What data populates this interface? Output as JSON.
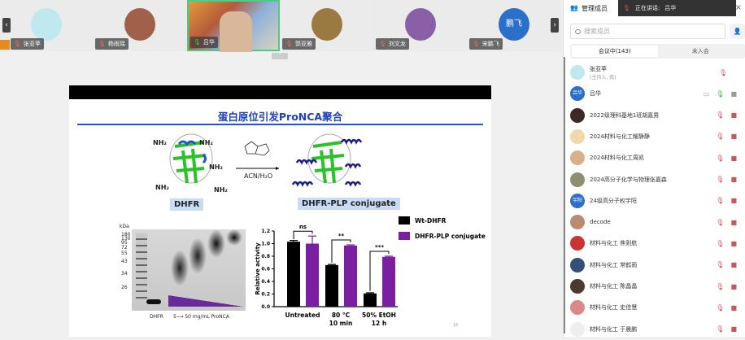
{
  "video_strip": {
    "tiles": [
      {
        "name": "张亚苹",
        "color": "#bfe8ef",
        "host": true
      },
      {
        "name": "杨雨瑶",
        "color": "#a0604a"
      },
      {
        "name": "吕华",
        "active": true,
        "speaking": true
      },
      {
        "name": "郭亚雅",
        "color": "#9a7a40"
      },
      {
        "name": "刘文龙",
        "color": "#8b5fa8"
      },
      {
        "name": "宋鹏飞",
        "color": "#2a6fc9",
        "avatar_text": "鹏飞"
      }
    ],
    "prev_icon": "chevron-left-icon",
    "next_icon": "chevron-right-icon",
    "collapse_icon": "chevron-up-icon"
  },
  "slide": {
    "title": "蛋白原位引发ProNCA聚合",
    "nh2": "NH₂",
    "reagent_condition": "ACN/H₂O",
    "left_label": "DHFR",
    "right_label": "DHFR-PLP conjugate",
    "gel": {
      "unit": "kDa",
      "markers": [
        "180",
        "130",
        "95",
        "72",
        "55",
        "43",
        "34",
        "26"
      ],
      "lane_label_left": "DHFR",
      "lane_label_right": "5⟶ 50 mg/mL  ProNCA"
    },
    "page_number": "15"
  },
  "chart_data": {
    "type": "bar",
    "ylabel": "Relative activity",
    "ylim": [
      0,
      1.2
    ],
    "yticks": [
      "0.0",
      "0.2",
      "0.4",
      "0.6",
      "0.8",
      "1.0",
      "1.2"
    ],
    "categories": [
      "Untreated",
      "80 °C\n10 min",
      "50% EtOH\n12 h"
    ],
    "category_lines": [
      [
        "Untreated"
      ],
      [
        "80 °C",
        "10 min"
      ],
      [
        "50% EtOH",
        "12 h"
      ]
    ],
    "series": [
      {
        "name": "Wt-DHFR",
        "color": "#000000",
        "values": [
          1.03,
          0.66,
          0.21
        ],
        "errors": [
          0.02,
          0.01,
          0.01
        ]
      },
      {
        "name": "DHFR-PLP conjugate",
        "color": "#7b1fa2",
        "values": [
          1.0,
          0.97,
          0.79
        ],
        "errors": [
          0.12,
          0.01,
          0.01
        ]
      }
    ],
    "significance": [
      "ns",
      "**",
      "***"
    ],
    "legend": "top-right"
  },
  "panel": {
    "title": "管理成员",
    "speaking_label": "正在讲话:",
    "speaking_name": "吕华",
    "search_placeholder": "搜索成员",
    "tabs": [
      {
        "label": "会议中(143)",
        "active": true
      },
      {
        "label": "未入会"
      }
    ],
    "members": [
      {
        "name": "张亚苹",
        "sub": "(主持人, 我)",
        "color": "#bfe8ef"
      },
      {
        "name": "吕华",
        "avatar_text": "吕华",
        "color": "#2a6fc9",
        "mic_on": true
      },
      {
        "name": "2022级理科基地1班胡嘉男",
        "color": "#3a2a25"
      },
      {
        "name": "2024材料与化工耀静静",
        "color": "#f3d7a8"
      },
      {
        "name": "2024材料与化工周凯",
        "color": "#d9b08a"
      },
      {
        "name": "2024高分子化学与物理张嘉森",
        "color": "#8f8f70"
      },
      {
        "name": "24级高分子权宇阳",
        "avatar_text": "宇阳",
        "color": "#2a6fc9"
      },
      {
        "name": "decode",
        "color": "#b98c70"
      },
      {
        "name": "材料与化工 焦则航",
        "color": "#c33"
      },
      {
        "name": "材料与化工 常鹤雨",
        "color": "#34507a"
      },
      {
        "name": "材料与化工 陈晶晶",
        "color": "#4a3a30"
      },
      {
        "name": "材料与化工 史佳慧",
        "color": "#d88"
      },
      {
        "name": "材料与化工 于晨鹏",
        "color": "#eee"
      }
    ]
  }
}
